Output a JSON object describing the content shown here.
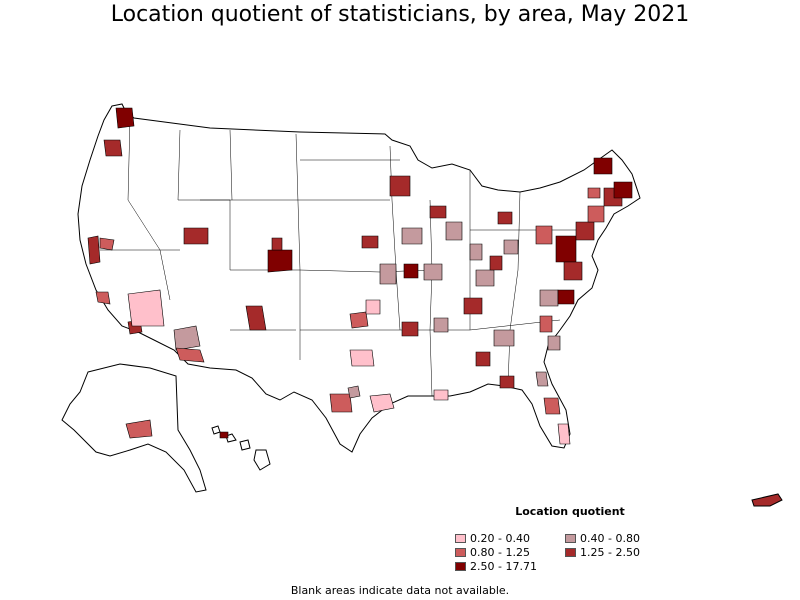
{
  "title": "Location quotient of statisticians, by area, May 2021",
  "legend": {
    "title": "Location quotient",
    "items": [
      {
        "label": "0.20 - 0.40",
        "color": "#ffc0cb"
      },
      {
        "label": "0.40 - 0.80",
        "color": "#c49a9e"
      },
      {
        "label": "0.80 - 1.25",
        "color": "#cd5c5c"
      },
      {
        "label": "1.25 - 2.50",
        "color": "#a52a2a"
      },
      {
        "label": "2.50 - 17.71",
        "color": "#800000"
      }
    ]
  },
  "footnote": "Blank areas indicate data not available.",
  "colors": {
    "border": "#000000",
    "blank": "#ffffff"
  }
}
